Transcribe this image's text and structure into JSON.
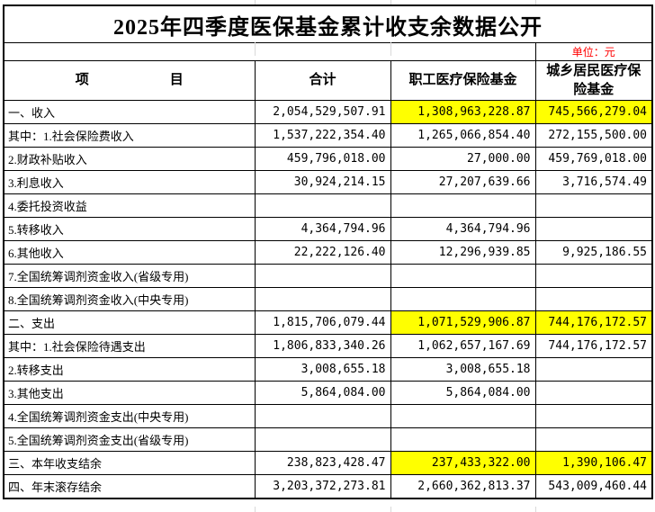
{
  "title": "2025年四季度医保基金累计收支余数据公开",
  "unit_label": "单位：元",
  "columns": {
    "item": "项　　　　　　目",
    "total": "合计",
    "employee": "职工医疗保险基金",
    "resident": "城乡居民医疗保险基金"
  },
  "rows": [
    {
      "l": "一、收入",
      "c1": "2,054,529,507.91",
      "c2": "1,308,963,228.87",
      "c3": "745,566,279.04"
    },
    {
      "l": "其中：1.社会保险费收入",
      "c1": "1,537,222,354.40",
      "c2": "1,265,066,854.40",
      "c3": "272,155,500.00"
    },
    {
      "l": "2.财政补贴收入",
      "c1": "459,796,018.00",
      "c2": "27,000.00",
      "c3": "459,769,018.00"
    },
    {
      "l": "3.利息收入",
      "c1": "30,924,214.15",
      "c2": "27,207,639.66",
      "c3": "3,716,574.49"
    },
    {
      "l": "4.委托投资收益",
      "c1": "",
      "c2": "",
      "c3": ""
    },
    {
      "l": "5.转移收入",
      "c1": "4,364,794.96",
      "c2": "4,364,794.96",
      "c3": ""
    },
    {
      "l": "6.其他收入",
      "c1": "22,222,126.40",
      "c2": "12,296,939.85",
      "c3": "9,925,186.55"
    },
    {
      "l": "7.全国统筹调剂资金收入(省级专用)",
      "c1": "",
      "c2": "",
      "c3": ""
    },
    {
      "l": "8.全国统筹调剂资金收入(中央专用)",
      "c1": "",
      "c2": "",
      "c3": ""
    },
    {
      "l": "二、支出",
      "c1": "1,815,706,079.44",
      "c2": "1,071,529,906.87",
      "c3": "744,176,172.57"
    },
    {
      "l": "其中：1.社会保险待遇支出",
      "c1": "1,806,833,340.26",
      "c2": "1,062,657,167.69",
      "c3": "744,176,172.57"
    },
    {
      "l": "2.转移支出",
      "c1": "3,008,655.18",
      "c2": "3,008,655.18",
      "c3": ""
    },
    {
      "l": "3.其他支出",
      "c1": "5,864,084.00",
      "c2": "5,864,084.00",
      "c3": ""
    },
    {
      "l": "4.全国统筹调剂资金支出(中央专用)",
      "c1": "",
      "c2": "",
      "c3": ""
    },
    {
      "l": "5.全国统筹调剂资金支出(省级专用)",
      "c1": "",
      "c2": "",
      "c3": ""
    },
    {
      "l": "三、本年收支结余",
      "c1": "238,823,428.47",
      "c2": "237,433,322.00",
      "c3": "1,390,106.47"
    },
    {
      "l": "四、年末滚存结余",
      "c1": "3,203,372,273.81",
      "c2": "2,660,362,813.37",
      "c3": "543,009,460.44"
    }
  ],
  "colors": {
    "highlight": "#ffff00",
    "unit_text": "#ff0000",
    "border": "#000000"
  }
}
